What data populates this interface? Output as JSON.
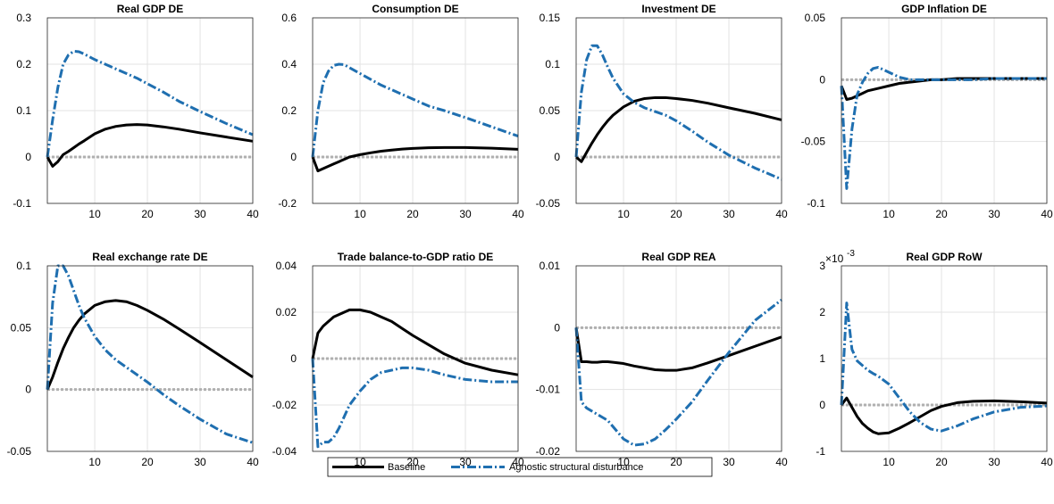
{
  "chart_data": [
    {
      "type": "line",
      "title": "Real GDP DE",
      "x": [
        1,
        2,
        3,
        4,
        5,
        6,
        7,
        8,
        10,
        12,
        14,
        16,
        18,
        20,
        23,
        26,
        30,
        35,
        40
      ],
      "xlim": [
        1,
        40
      ],
      "xticks": [
        10,
        20,
        30,
        40
      ],
      "ylim": [
        -0.1,
        0.3
      ],
      "yticks": [
        -0.1,
        0,
        0.1,
        0.2,
        0.3
      ],
      "grid": true,
      "hline": 0,
      "series": [
        {
          "color": "#000000",
          "style": "solid",
          "values": [
            0,
            -0.02,
            -0.01,
            0.005,
            0.012,
            0.02,
            0.028,
            0.035,
            0.05,
            0.06,
            0.066,
            0.069,
            0.07,
            0.069,
            0.065,
            0.06,
            0.052,
            0.043,
            0.034
          ]
        },
        {
          "color": "#1f6fb0",
          "style": "dashdot",
          "values": [
            0,
            0.08,
            0.15,
            0.2,
            0.22,
            0.228,
            0.227,
            0.222,
            0.21,
            0.2,
            0.19,
            0.18,
            0.17,
            0.158,
            0.14,
            0.12,
            0.098,
            0.072,
            0.048
          ]
        }
      ]
    },
    {
      "type": "line",
      "title": "Consumption DE",
      "x": [
        1,
        2,
        3,
        4,
        5,
        6,
        7,
        8,
        10,
        12,
        14,
        16,
        18,
        20,
        23,
        26,
        30,
        35,
        40
      ],
      "xlim": [
        1,
        40
      ],
      "xticks": [
        10,
        20,
        30,
        40
      ],
      "ylim": [
        -0.2,
        0.6
      ],
      "yticks": [
        -0.2,
        0,
        0.2,
        0.4,
        0.6
      ],
      "grid": true,
      "hline": 0,
      "series": [
        {
          "color": "#000000",
          "style": "solid",
          "values": [
            0,
            -0.06,
            -0.05,
            -0.04,
            -0.03,
            -0.02,
            -0.01,
            0,
            0.01,
            0.018,
            0.025,
            0.03,
            0.034,
            0.037,
            0.04,
            0.041,
            0.041,
            0.038,
            0.033
          ]
        },
        {
          "color": "#1f6fb0",
          "style": "dashdot",
          "values": [
            0,
            0.2,
            0.32,
            0.37,
            0.395,
            0.4,
            0.398,
            0.385,
            0.36,
            0.335,
            0.31,
            0.29,
            0.27,
            0.25,
            0.22,
            0.2,
            0.17,
            0.13,
            0.09
          ]
        }
      ]
    },
    {
      "type": "line",
      "title": "Investment DE",
      "x": [
        1,
        2,
        3,
        4,
        5,
        6,
        7,
        8,
        10,
        12,
        14,
        16,
        18,
        20,
        23,
        26,
        30,
        35,
        40
      ],
      "xlim": [
        1,
        40
      ],
      "xticks": [
        10,
        20,
        30,
        40
      ],
      "ylim": [
        -0.05,
        0.15
      ],
      "yticks": [
        -0.05,
        0,
        0.05,
        0.1,
        0.15
      ],
      "grid": true,
      "hline": 0,
      "series": [
        {
          "color": "#000000",
          "style": "solid",
          "values": [
            0,
            -0.005,
            0.005,
            0.015,
            0.024,
            0.032,
            0.039,
            0.045,
            0.054,
            0.06,
            0.063,
            0.064,
            0.064,
            0.063,
            0.061,
            0.058,
            0.053,
            0.047,
            0.04
          ]
        },
        {
          "color": "#1f6fb0",
          "style": "dashdot",
          "values": [
            0,
            0.07,
            0.105,
            0.12,
            0.12,
            0.11,
            0.097,
            0.085,
            0.068,
            0.059,
            0.053,
            0.049,
            0.045,
            0.039,
            0.028,
            0.016,
            0.002,
            -0.012,
            -0.024
          ]
        }
      ]
    },
    {
      "type": "line",
      "title": "GDP Inflation DE",
      "x": [
        1,
        2,
        3,
        4,
        5,
        6,
        7,
        8,
        10,
        12,
        14,
        16,
        18,
        20,
        23,
        26,
        30,
        35,
        40
      ],
      "xlim": [
        1,
        40
      ],
      "xticks": [
        10,
        20,
        30,
        40
      ],
      "ylim": [
        -0.1,
        0.05
      ],
      "yticks": [
        -0.1,
        -0.05,
        0,
        0.05
      ],
      "grid": true,
      "hline": 0,
      "series": [
        {
          "color": "#000000",
          "style": "solid",
          "values": [
            -0.005,
            -0.016,
            -0.015,
            -0.013,
            -0.011,
            -0.009,
            -0.008,
            -0.007,
            -0.005,
            -0.003,
            -0.002,
            -0.001,
            0,
            0,
            0.001,
            0.001,
            0.001,
            0.001,
            0.001
          ]
        },
        {
          "color": "#1f6fb0",
          "style": "dashdot",
          "values": [
            -0.005,
            -0.088,
            -0.04,
            -0.012,
            -0.002,
            0.005,
            0.009,
            0.01,
            0.006,
            0.002,
            0,
            0,
            0,
            0,
            0,
            0,
            0.001,
            0.001,
            0.001
          ]
        }
      ]
    },
    {
      "type": "line",
      "title": "Real exchange rate DE",
      "x": [
        1,
        2,
        3,
        4,
        5,
        6,
        7,
        8,
        10,
        12,
        14,
        16,
        18,
        20,
        23,
        26,
        30,
        35,
        40
      ],
      "xlim": [
        1,
        40
      ],
      "xticks": [
        10,
        20,
        30,
        40
      ],
      "ylim": [
        -0.05,
        0.1
      ],
      "yticks": [
        -0.05,
        0,
        0.05,
        0.1
      ],
      "grid": true,
      "hline": 0,
      "series": [
        {
          "color": "#000000",
          "style": "solid",
          "values": [
            0,
            0.01,
            0.022,
            0.033,
            0.042,
            0.05,
            0.056,
            0.061,
            0.068,
            0.071,
            0.072,
            0.071,
            0.068,
            0.064,
            0.057,
            0.049,
            0.038,
            0.024,
            0.01
          ]
        },
        {
          "color": "#1f6fb0",
          "style": "dashdot",
          "values": [
            0,
            0.07,
            0.1,
            0.1,
            0.092,
            0.08,
            0.068,
            0.058,
            0.043,
            0.032,
            0.024,
            0.018,
            0.012,
            0.006,
            -0.004,
            -0.013,
            -0.024,
            -0.036,
            -0.043
          ]
        }
      ]
    },
    {
      "type": "line",
      "title": "Trade balance-to-GDP ratio DE",
      "x": [
        1,
        2,
        3,
        4,
        5,
        6,
        7,
        8,
        10,
        12,
        14,
        16,
        18,
        20,
        23,
        26,
        30,
        35,
        40
      ],
      "xlim": [
        1,
        40
      ],
      "xticks": [
        10,
        20,
        30,
        40
      ],
      "ylim": [
        -0.04,
        0.04
      ],
      "yticks": [
        -0.04,
        -0.02,
        0,
        0.02,
        0.04
      ],
      "grid": true,
      "hline": 0,
      "series": [
        {
          "color": "#000000",
          "style": "solid",
          "values": [
            0,
            0.011,
            0.014,
            0.016,
            0.018,
            0.019,
            0.02,
            0.021,
            0.021,
            0.02,
            0.018,
            0.016,
            0.013,
            0.01,
            0.006,
            0.002,
            -0.002,
            -0.005,
            -0.007
          ]
        },
        {
          "color": "#1f6fb0",
          "style": "dashdot",
          "values": [
            0,
            -0.038,
            -0.036,
            -0.036,
            -0.034,
            -0.03,
            -0.025,
            -0.02,
            -0.014,
            -0.009,
            -0.006,
            -0.005,
            -0.004,
            -0.004,
            -0.005,
            -0.007,
            -0.009,
            -0.01,
            -0.01
          ]
        }
      ]
    },
    {
      "type": "line",
      "title": "Real GDP REA",
      "x": [
        1,
        2,
        3,
        4,
        5,
        6,
        7,
        8,
        10,
        12,
        14,
        16,
        18,
        20,
        23,
        26,
        30,
        35,
        40
      ],
      "xlim": [
        1,
        40
      ],
      "xticks": [
        10,
        20,
        30,
        40
      ],
      "ylim": [
        -0.02,
        0.01
      ],
      "yticks": [
        -0.02,
        -0.01,
        0,
        0.01
      ],
      "grid": true,
      "hline": 0,
      "series": [
        {
          "color": "#000000",
          "style": "solid",
          "values": [
            0,
            -0.0055,
            -0.0055,
            -0.0056,
            -0.0056,
            -0.0055,
            -0.0055,
            -0.0056,
            -0.0058,
            -0.0062,
            -0.0065,
            -0.0068,
            -0.0069,
            -0.0069,
            -0.0065,
            -0.0057,
            -0.0045,
            -0.003,
            -0.0015
          ]
        },
        {
          "color": "#1f6fb0",
          "style": "dashdot",
          "values": [
            0,
            -0.012,
            -0.013,
            -0.0135,
            -0.014,
            -0.0145,
            -0.015,
            -0.016,
            -0.018,
            -0.019,
            -0.0188,
            -0.018,
            -0.0165,
            -0.0148,
            -0.012,
            -0.0085,
            -0.004,
            0.0012,
            0.0045
          ]
        }
      ]
    },
    {
      "type": "line",
      "title": "Real GDP RoW",
      "y_multiplier": "×10",
      "y_multiplier_exp": "-3",
      "x": [
        1,
        2,
        3,
        4,
        5,
        6,
        7,
        8,
        10,
        12,
        14,
        16,
        18,
        20,
        23,
        26,
        30,
        35,
        40
      ],
      "xlim": [
        1,
        40
      ],
      "xticks": [
        10,
        20,
        30,
        40
      ],
      "ylim": [
        -1,
        3
      ],
      "yticks": [
        -1,
        0,
        1,
        2,
        3
      ],
      "grid": true,
      "hline": 0,
      "series": [
        {
          "color": "#000000",
          "style": "solid",
          "values": [
            0,
            0.15,
            -0.05,
            -0.25,
            -0.4,
            -0.5,
            -0.58,
            -0.62,
            -0.6,
            -0.5,
            -0.38,
            -0.25,
            -0.12,
            -0.03,
            0.05,
            0.08,
            0.09,
            0.07,
            0.04
          ]
        },
        {
          "color": "#1f6fb0",
          "style": "dashdot",
          "values": [
            0,
            2.2,
            1.2,
            0.95,
            0.85,
            0.75,
            0.68,
            0.62,
            0.45,
            0.15,
            -0.15,
            -0.38,
            -0.52,
            -0.56,
            -0.45,
            -0.3,
            -0.15,
            -0.05,
            -0.02
          ]
        }
      ]
    }
  ],
  "legend": {
    "entries": [
      "Baseline",
      "Agnostic structural disturbance"
    ]
  }
}
